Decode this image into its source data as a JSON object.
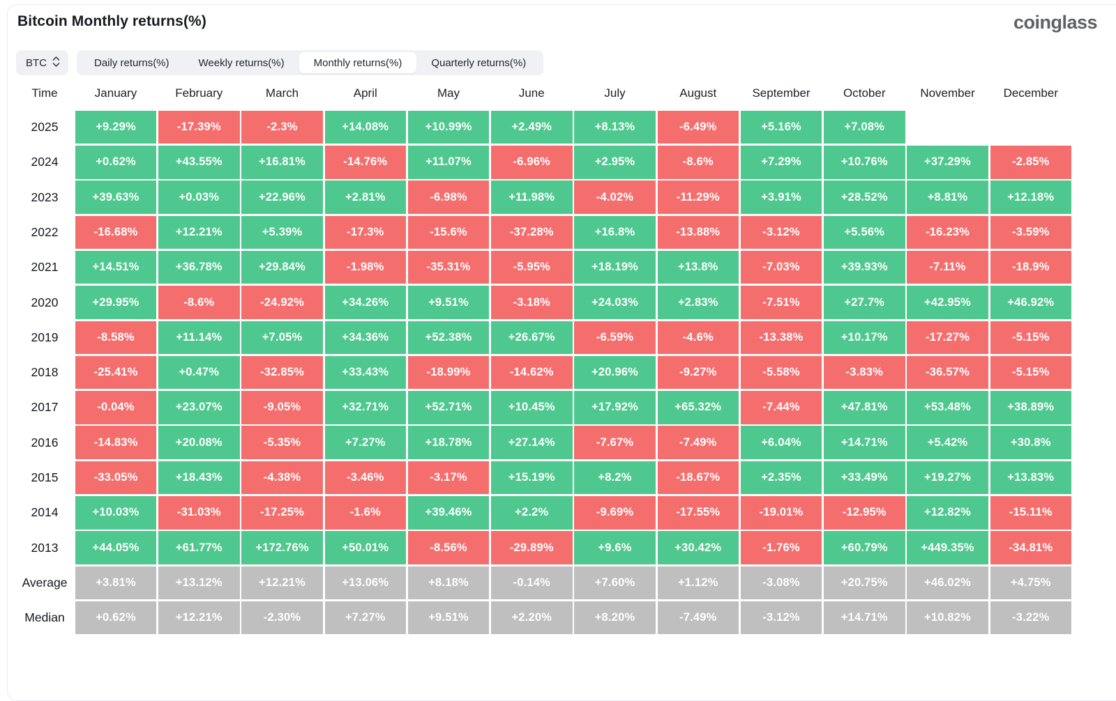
{
  "header": {
    "title": "Bitcoin Monthly returns(%)",
    "logo": "coinglass"
  },
  "controls": {
    "symbol": "BTC",
    "symbol_icon": "sort-chevrons-icon",
    "tabs": [
      "Daily returns(%)",
      "Weekly returns(%)",
      "Monthly returns(%)",
      "Quarterly returns(%)"
    ],
    "active_tab": "Monthly returns(%)"
  },
  "colors": {
    "positive": "#4ec88e",
    "negative": "#f56e6e",
    "summary": "#bfbfbf"
  },
  "chart_data": {
    "type": "heatmap",
    "title": "Bitcoin Monthly returns(%)",
    "time_label": "Time",
    "months": [
      "January",
      "February",
      "March",
      "April",
      "May",
      "June",
      "July",
      "August",
      "September",
      "October",
      "November",
      "December"
    ],
    "legend": "green = positive monthly return, red = negative monthly return, gray = summary rows",
    "rows": [
      {
        "label": "2025",
        "type": "year",
        "values": [
          "+9.29%",
          "-17.39%",
          "-2.3%",
          "+14.08%",
          "+10.99%",
          "+2.49%",
          "+8.13%",
          "-6.49%",
          "+5.16%",
          "+7.08%",
          "",
          ""
        ]
      },
      {
        "label": "2024",
        "type": "year",
        "values": [
          "+0.62%",
          "+43.55%",
          "+16.81%",
          "-14.76%",
          "+11.07%",
          "-6.96%",
          "+2.95%",
          "-8.6%",
          "+7.29%",
          "+10.76%",
          "+37.29%",
          "-2.85%"
        ]
      },
      {
        "label": "2023",
        "type": "year",
        "values": [
          "+39.63%",
          "+0.03%",
          "+22.96%",
          "+2.81%",
          "-6.98%",
          "+11.98%",
          "-4.02%",
          "-11.29%",
          "+3.91%",
          "+28.52%",
          "+8.81%",
          "+12.18%"
        ]
      },
      {
        "label": "2022",
        "type": "year",
        "values": [
          "-16.68%",
          "+12.21%",
          "+5.39%",
          "-17.3%",
          "-15.6%",
          "-37.28%",
          "+16.8%",
          "-13.88%",
          "-3.12%",
          "+5.56%",
          "-16.23%",
          "-3.59%"
        ]
      },
      {
        "label": "2021",
        "type": "year",
        "values": [
          "+14.51%",
          "+36.78%",
          "+29.84%",
          "-1.98%",
          "-35.31%",
          "-5.95%",
          "+18.19%",
          "+13.8%",
          "-7.03%",
          "+39.93%",
          "-7.11%",
          "-18.9%"
        ]
      },
      {
        "label": "2020",
        "type": "year",
        "values": [
          "+29.95%",
          "-8.6%",
          "-24.92%",
          "+34.26%",
          "+9.51%",
          "-3.18%",
          "+24.03%",
          "+2.83%",
          "-7.51%",
          "+27.7%",
          "+42.95%",
          "+46.92%"
        ]
      },
      {
        "label": "2019",
        "type": "year",
        "values": [
          "-8.58%",
          "+11.14%",
          "+7.05%",
          "+34.36%",
          "+52.38%",
          "+26.67%",
          "-6.59%",
          "-4.6%",
          "-13.38%",
          "+10.17%",
          "-17.27%",
          "-5.15%"
        ]
      },
      {
        "label": "2018",
        "type": "year",
        "values": [
          "-25.41%",
          "+0.47%",
          "-32.85%",
          "+33.43%",
          "-18.99%",
          "-14.62%",
          "+20.96%",
          "-9.27%",
          "-5.58%",
          "-3.83%",
          "-36.57%",
          "-5.15%"
        ]
      },
      {
        "label": "2017",
        "type": "year",
        "values": [
          "-0.04%",
          "+23.07%",
          "-9.05%",
          "+32.71%",
          "+52.71%",
          "+10.45%",
          "+17.92%",
          "+65.32%",
          "-7.44%",
          "+47.81%",
          "+53.48%",
          "+38.89%"
        ]
      },
      {
        "label": "2016",
        "type": "year",
        "values": [
          "-14.83%",
          "+20.08%",
          "-5.35%",
          "+7.27%",
          "+18.78%",
          "+27.14%",
          "-7.67%",
          "-7.49%",
          "+6.04%",
          "+14.71%",
          "+5.42%",
          "+30.8%"
        ]
      },
      {
        "label": "2015",
        "type": "year",
        "values": [
          "-33.05%",
          "+18.43%",
          "-4.38%",
          "-3.46%",
          "-3.17%",
          "+15.19%",
          "+8.2%",
          "-18.67%",
          "+2.35%",
          "+33.49%",
          "+19.27%",
          "+13.83%"
        ]
      },
      {
        "label": "2014",
        "type": "year",
        "values": [
          "+10.03%",
          "-31.03%",
          "-17.25%",
          "-1.6%",
          "+39.46%",
          "+2.2%",
          "-9.69%",
          "-17.55%",
          "-19.01%",
          "-12.95%",
          "+12.82%",
          "-15.11%"
        ]
      },
      {
        "label": "2013",
        "type": "year",
        "values": [
          "+44.05%",
          "+61.77%",
          "+172.76%",
          "+50.01%",
          "-8.56%",
          "-29.89%",
          "+9.6%",
          "+30.42%",
          "-1.76%",
          "+60.79%",
          "+449.35%",
          "-34.81%"
        ]
      },
      {
        "label": "Average",
        "type": "summary",
        "values": [
          "+3.81%",
          "+13.12%",
          "+12.21%",
          "+13.06%",
          "+8.18%",
          "-0.14%",
          "+7.60%",
          "+1.12%",
          "-3.08%",
          "+20.75%",
          "+46.02%",
          "+4.75%"
        ]
      },
      {
        "label": "Median",
        "type": "summary",
        "values": [
          "+0.62%",
          "+12.21%",
          "-2.30%",
          "+7.27%",
          "+9.51%",
          "+2.20%",
          "+8.20%",
          "-7.49%",
          "-3.12%",
          "+14.71%",
          "+10.82%",
          "-3.22%"
        ]
      }
    ]
  }
}
